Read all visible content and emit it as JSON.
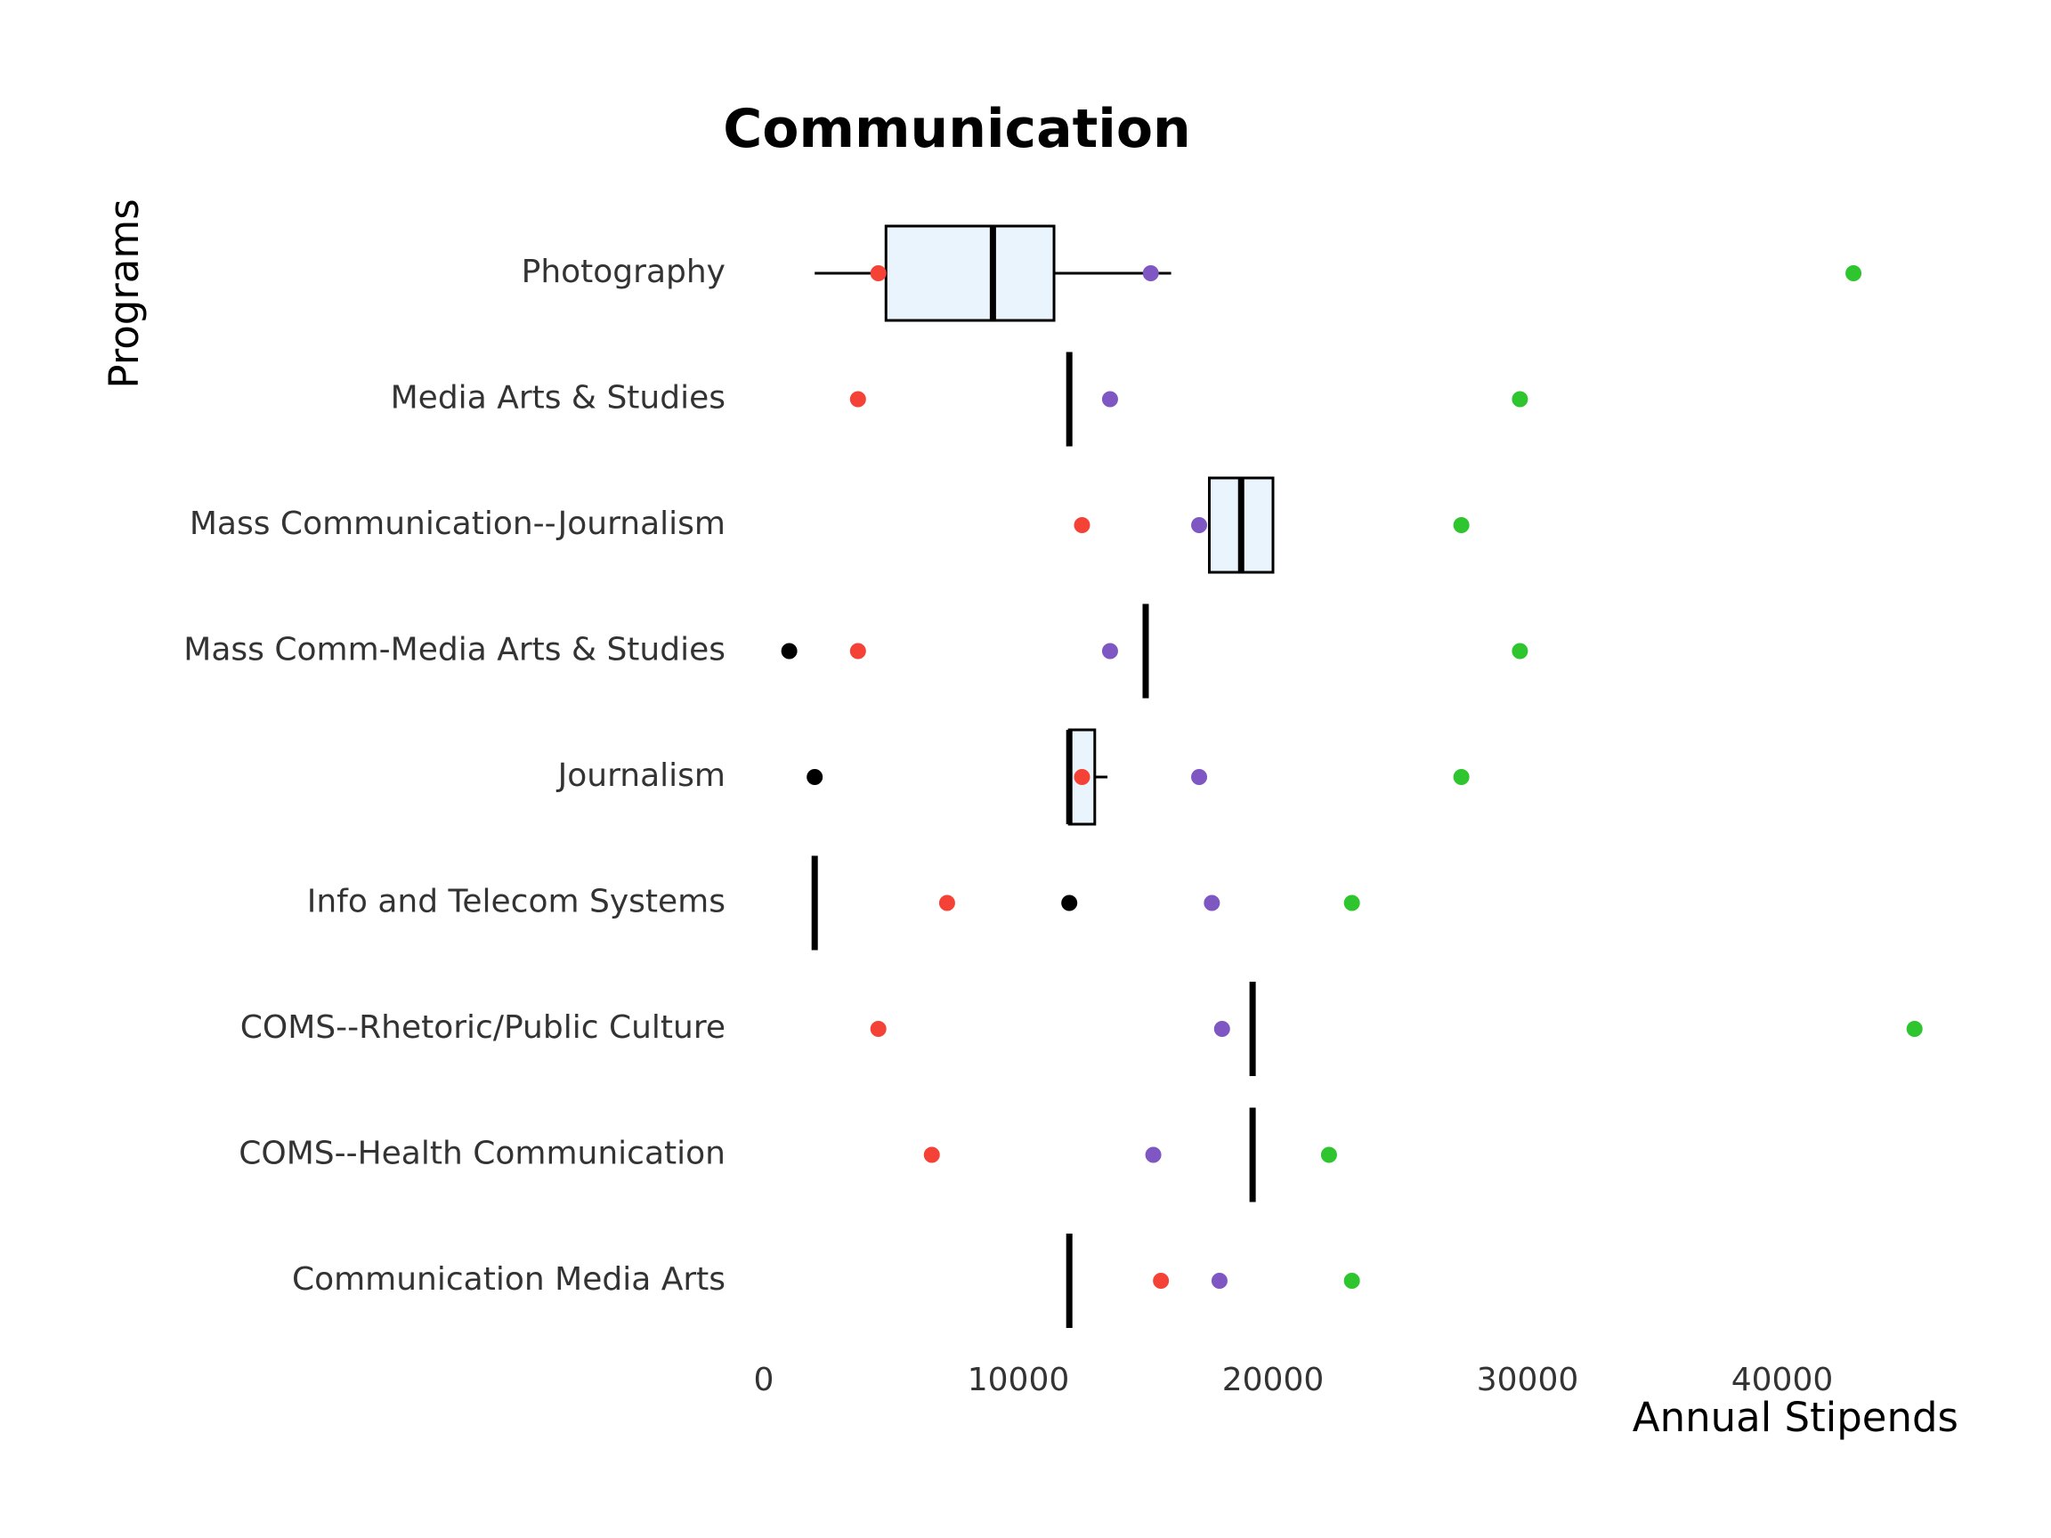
{
  "chart_data": {
    "type": "boxplot",
    "title": "Communication",
    "xlabel": "Annual Stipends",
    "ylabel": "Programs",
    "xlim": [
      0,
      47000
    ],
    "x_ticks": [
      0,
      10000,
      20000,
      30000,
      40000
    ],
    "x_tick_labels": [
      "0",
      "10000",
      "20000",
      "30000",
      "40000"
    ],
    "grid": false,
    "legend": "none",
    "categories": [
      "Photography",
      "Media Arts & Studies",
      "Mass Communication--Journalism",
      "Mass Comm-Media Arts & Studies",
      "Journalism",
      "Info and Telecom Systems",
      "COMS--Rhetoric/Public Culture",
      "COMS--Health Communication",
      "Communication Media Arts"
    ],
    "boxes": [
      {
        "category": "Photography",
        "whisker_low": 2000,
        "q1": 4800,
        "median": 9000,
        "q3": 11400,
        "whisker_high": 16000
      },
      {
        "category": "Media Arts & Studies",
        "whisker_low": 12000,
        "q1": 12000,
        "median": 12000,
        "q3": 12000,
        "whisker_high": 12000
      },
      {
        "category": "Mass Communication--Journalism",
        "whisker_low": 17500,
        "q1": 17500,
        "median": 18750,
        "q3": 20000,
        "whisker_high": 20000
      },
      {
        "category": "Mass Comm-Media Arts & Studies",
        "whisker_low": 15000,
        "q1": 15000,
        "median": 15000,
        "q3": 15000,
        "whisker_high": 15000
      },
      {
        "category": "Journalism",
        "whisker_low": 12000,
        "q1": 12000,
        "median": 12000,
        "q3": 13000,
        "whisker_high": 13500
      },
      {
        "category": "Info and Telecom Systems",
        "whisker_low": 2000,
        "q1": 2000,
        "median": 2000,
        "q3": 2000,
        "whisker_high": 2000
      },
      {
        "category": "COMS--Rhetoric/Public Culture",
        "whisker_low": 19200,
        "q1": 19200,
        "median": 19200,
        "q3": 19200,
        "whisker_high": 19200
      },
      {
        "category": "COMS--Health Communication",
        "whisker_low": 19200,
        "q1": 19200,
        "median": 19200,
        "q3": 19200,
        "whisker_high": 19200
      },
      {
        "category": "Communication Media Arts",
        "whisker_low": 12000,
        "q1": 12000,
        "median": 12000,
        "q3": 12000,
        "whisker_high": 12000
      }
    ],
    "point_series": [
      {
        "color": "#f44336",
        "points": [
          {
            "category": "Photography",
            "x": 4500
          },
          {
            "category": "Media Arts & Studies",
            "x": 3700
          },
          {
            "category": "Mass Communication--Journalism",
            "x": 12500
          },
          {
            "category": "Mass Comm-Media Arts & Studies",
            "x": 3700
          },
          {
            "category": "Journalism",
            "x": 12500
          },
          {
            "category": "Info and Telecom Systems",
            "x": 7200
          },
          {
            "category": "COMS--Rhetoric/Public Culture",
            "x": 4500
          },
          {
            "category": "COMS--Health Communication",
            "x": 6600
          },
          {
            "category": "Communication Media Arts",
            "x": 15600
          }
        ]
      },
      {
        "color": "#7e57c2",
        "points": [
          {
            "category": "Photography",
            "x": 15200
          },
          {
            "category": "Media Arts & Studies",
            "x": 13600
          },
          {
            "category": "Mass Communication--Journalism",
            "x": 17100
          },
          {
            "category": "Mass Comm-Media Arts & Studies",
            "x": 13600
          },
          {
            "category": "Journalism",
            "x": 17100
          },
          {
            "category": "Info and Telecom Systems",
            "x": 17600
          },
          {
            "category": "COMS--Rhetoric/Public Culture",
            "x": 18000
          },
          {
            "category": "COMS--Health Communication",
            "x": 15300
          },
          {
            "category": "Communication Media Arts",
            "x": 17900
          }
        ]
      },
      {
        "color": "#2ec52e",
        "points": [
          {
            "category": "Photography",
            "x": 42800
          },
          {
            "category": "Media Arts & Studies",
            "x": 29700
          },
          {
            "category": "Mass Communication--Journalism",
            "x": 27400
          },
          {
            "category": "Mass Comm-Media Arts & Studies",
            "x": 29700
          },
          {
            "category": "Journalism",
            "x": 27400
          },
          {
            "category": "Info and Telecom Systems",
            "x": 23100
          },
          {
            "category": "COMS--Rhetoric/Public Culture",
            "x": 45200
          },
          {
            "category": "COMS--Health Communication",
            "x": 22200
          },
          {
            "category": "Communication Media Arts",
            "x": 23100
          }
        ]
      },
      {
        "color": "#000000",
        "points": [
          {
            "category": "Mass Comm-Media Arts & Studies",
            "x": 1000
          },
          {
            "category": "Journalism",
            "x": 2000
          },
          {
            "category": "Info and Telecom Systems",
            "x": 12000
          }
        ]
      }
    ],
    "colors": {
      "box_fill": "#eaf4fc",
      "box_stroke": "#000000",
      "text": "#333333"
    }
  }
}
